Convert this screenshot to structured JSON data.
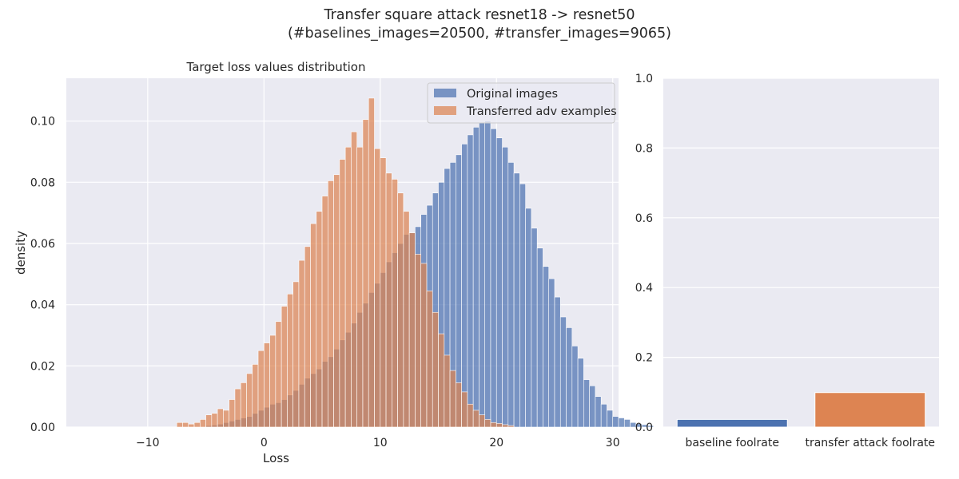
{
  "figure": {
    "title_line1": "Transfer square attack resnet18 -> resnet50",
    "title_line2": "(#baselines_images=20500, #transfer_images=9065)"
  },
  "chart_data": [
    {
      "type": "histogram",
      "title": "Target loss values distribution",
      "xlabel": "Loss",
      "ylabel": "density",
      "xlim": [
        -17,
        30.5
      ],
      "ylim": [
        0,
        0.114
      ],
      "xticks": [
        "-10",
        "0",
        "10",
        "20",
        "30"
      ],
      "yticks": [
        "0.00",
        "0.02",
        "0.04",
        "0.06",
        "0.08",
        "0.10"
      ],
      "grid": true,
      "legend_position": "top-right",
      "bin_width": 0.5,
      "series": [
        {
          "name": "Original images",
          "color": "#4c72b0",
          "bin_start": -5.0,
          "densities": [
            0.0005,
            0.0007,
            0.001,
            0.0015,
            0.002,
            0.0025,
            0.003,
            0.0035,
            0.0045,
            0.0055,
            0.0065,
            0.0075,
            0.008,
            0.009,
            0.0105,
            0.012,
            0.014,
            0.016,
            0.0175,
            0.019,
            0.0215,
            0.023,
            0.0255,
            0.0285,
            0.031,
            0.034,
            0.0375,
            0.0405,
            0.044,
            0.047,
            0.0505,
            0.054,
            0.057,
            0.06,
            0.063,
            0.0635,
            0.0655,
            0.0695,
            0.0725,
            0.0765,
            0.08,
            0.0845,
            0.0865,
            0.089,
            0.0925,
            0.0955,
            0.098,
            0.0995,
            0.1,
            0.0975,
            0.0945,
            0.0915,
            0.0865,
            0.083,
            0.0795,
            0.0715,
            0.065,
            0.0585,
            0.0525,
            0.0485,
            0.0425,
            0.036,
            0.0325,
            0.0265,
            0.0225,
            0.0155,
            0.0135,
            0.01,
            0.0075,
            0.0055,
            0.0035,
            0.003,
            0.0025,
            0.0015,
            0.0011,
            0.0008,
            0.0005
          ]
        },
        {
          "name": "Transferred adv examples",
          "color": "#dd8452",
          "bin_start": -7.5,
          "densities": [
            0.0015,
            0.0015,
            0.001,
            0.0015,
            0.0025,
            0.004,
            0.0045,
            0.006,
            0.0055,
            0.009,
            0.0125,
            0.0145,
            0.0175,
            0.0205,
            0.025,
            0.0275,
            0.03,
            0.0345,
            0.0395,
            0.0435,
            0.0475,
            0.0545,
            0.059,
            0.0665,
            0.0705,
            0.0755,
            0.0805,
            0.0825,
            0.0875,
            0.0915,
            0.0965,
            0.0915,
            0.1005,
            0.1075,
            0.091,
            0.088,
            0.083,
            0.081,
            0.0765,
            0.0705,
            0.0635,
            0.0565,
            0.0535,
            0.0445,
            0.0375,
            0.0305,
            0.0235,
            0.0185,
            0.0145,
            0.0115,
            0.0075,
            0.0055,
            0.004,
            0.0025,
            0.0015,
            0.0012,
            0.0008,
            0.0005
          ]
        }
      ]
    },
    {
      "type": "bar",
      "categories": [
        "baseline foolrate",
        "transfer attack foolrate"
      ],
      "values": [
        0.022,
        0.099
      ],
      "colors": [
        "#4c72b0",
        "#dd8452"
      ],
      "ylim": [
        0,
        1.0
      ],
      "yticks": [
        "0.0",
        "0.2",
        "0.4",
        "0.6",
        "0.8",
        "1.0"
      ],
      "grid": true
    }
  ]
}
